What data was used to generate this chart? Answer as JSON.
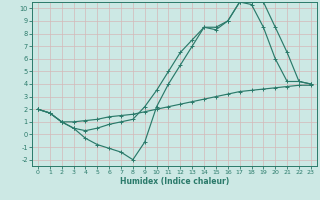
{
  "title": "",
  "xlabel": "Humidex (Indice chaleur)",
  "ylabel": "",
  "background_color": "#cce8e4",
  "grid_color": "#b8d8d2",
  "line_color": "#2a7a6a",
  "xlim": [
    -0.5,
    23.5
  ],
  "ylim": [
    -2.5,
    10.5
  ],
  "xticks": [
    0,
    1,
    2,
    3,
    4,
    5,
    6,
    7,
    8,
    9,
    10,
    11,
    12,
    13,
    14,
    15,
    16,
    17,
    18,
    19,
    20,
    21,
    22,
    23
  ],
  "yticks": [
    -2,
    -1,
    0,
    1,
    2,
    3,
    4,
    5,
    6,
    7,
    8,
    9,
    10
  ],
  "line1_x": [
    0,
    1,
    2,
    3,
    4,
    5,
    6,
    7,
    8,
    9,
    10,
    11,
    12,
    13,
    14,
    15,
    16,
    17,
    18,
    19,
    20,
    21,
    22,
    23
  ],
  "line1_y": [
    2.0,
    1.7,
    1.0,
    0.5,
    -0.3,
    -0.8,
    -1.1,
    -1.4,
    -2.0,
    -0.6,
    2.2,
    4.0,
    5.5,
    7.0,
    8.5,
    8.5,
    9.0,
    10.5,
    10.5,
    10.5,
    8.5,
    6.5,
    4.2,
    4.0
  ],
  "line2_x": [
    0,
    1,
    2,
    3,
    4,
    5,
    6,
    7,
    8,
    9,
    10,
    11,
    12,
    13,
    14,
    15,
    16,
    17,
    18,
    19,
    20,
    21,
    22,
    23
  ],
  "line2_y": [
    2.0,
    1.7,
    1.0,
    1.0,
    1.1,
    1.2,
    1.4,
    1.5,
    1.6,
    1.8,
    2.0,
    2.2,
    2.4,
    2.6,
    2.8,
    3.0,
    3.2,
    3.4,
    3.5,
    3.6,
    3.7,
    3.8,
    3.9,
    3.9
  ],
  "line3_x": [
    0,
    1,
    2,
    3,
    4,
    5,
    6,
    7,
    8,
    9,
    10,
    11,
    12,
    13,
    14,
    15,
    16,
    17,
    18,
    19,
    20,
    21,
    22,
    23
  ],
  "line3_y": [
    2.0,
    1.7,
    1.0,
    0.5,
    0.3,
    0.5,
    0.8,
    1.0,
    1.2,
    2.2,
    3.5,
    5.0,
    6.5,
    7.5,
    8.5,
    8.3,
    9.0,
    10.5,
    10.3,
    8.5,
    6.0,
    4.2,
    4.2,
    4.0
  ]
}
